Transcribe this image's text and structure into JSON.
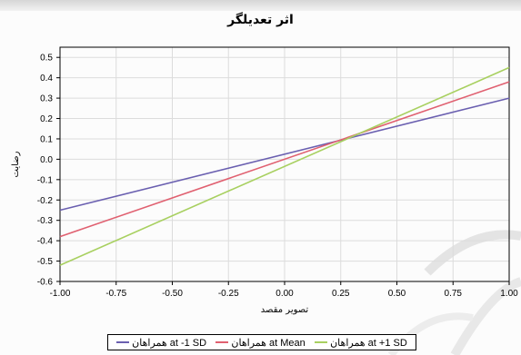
{
  "chart_data": {
    "type": "line",
    "title": "اثر تعدیلگر",
    "xlabel": "تصویر مقصد",
    "ylabel": "رضایت",
    "xlim": [
      -1.0,
      1.0
    ],
    "ylim": [
      -0.6,
      0.55
    ],
    "grid": true,
    "legend_position": "bottom",
    "x_ticks": [
      "-1.00",
      "-0.75",
      "-0.50",
      "-0.25",
      "0.00",
      "0.25",
      "0.50",
      "0.75",
      "1.00"
    ],
    "x_tick_values": [
      -1.0,
      -0.75,
      -0.5,
      -0.25,
      0.0,
      0.25,
      0.5,
      0.75,
      1.0
    ],
    "y_ticks": [
      "0.5",
      "0.4",
      "0.3",
      "0.2",
      "0.1",
      "0.0",
      "-0.1",
      "-0.2",
      "-0.3",
      "-0.4",
      "-0.5",
      "-0.6"
    ],
    "y_tick_values": [
      0.5,
      0.4,
      0.3,
      0.2,
      0.1,
      0.0,
      -0.1,
      -0.2,
      -0.3,
      -0.4,
      -0.5,
      -0.6
    ],
    "series": [
      {
        "name": "همراهان at -1 SD",
        "color": "#6a5fb0",
        "x": [
          -1.0,
          1.0
        ],
        "y": [
          -0.25,
          0.3
        ]
      },
      {
        "name": "همراهان at Mean",
        "color": "#e06070",
        "x": [
          -1.0,
          1.0
        ],
        "y": [
          -0.38,
          0.38
        ]
      },
      {
        "name": "همراهان at +1 SD",
        "color": "#a8d060",
        "x": [
          -1.0,
          1.0
        ],
        "y": [
          -0.52,
          0.45
        ]
      }
    ]
  }
}
